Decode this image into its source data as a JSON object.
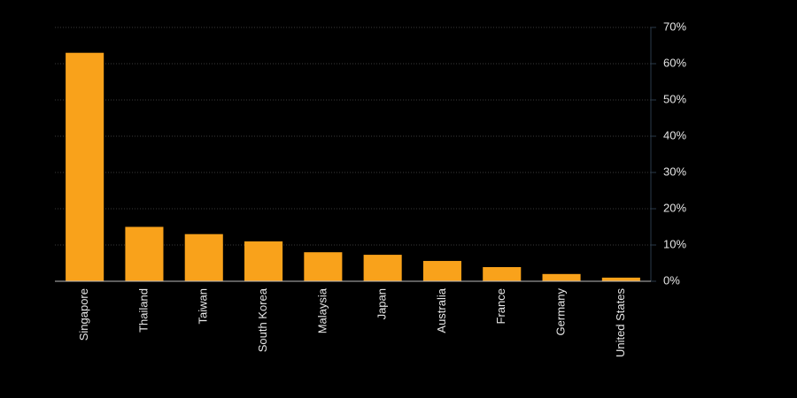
{
  "chart_data": {
    "type": "bar",
    "categories": [
      "Singapore",
      "Thailand",
      "Taiwan",
      "South Korea",
      "Malaysia",
      "Japan",
      "Australia",
      "France",
      "Germany",
      "United States"
    ],
    "values": [
      63,
      15,
      13,
      11,
      8,
      7.3,
      5.6,
      3.9,
      2,
      1
    ],
    "color": "#f9a21b",
    "ylim": [
      0,
      70
    ],
    "yticks": [
      {
        "value": 0,
        "label": "0%"
      },
      {
        "value": 10,
        "label": "10%"
      },
      {
        "value": 20,
        "label": "20%"
      },
      {
        "value": 30,
        "label": "30%"
      },
      {
        "value": 40,
        "label": "40%"
      },
      {
        "value": 50,
        "label": "50%"
      },
      {
        "value": 60,
        "label": "60%"
      },
      {
        "value": 70,
        "label": "70%"
      }
    ],
    "grid": true
  }
}
